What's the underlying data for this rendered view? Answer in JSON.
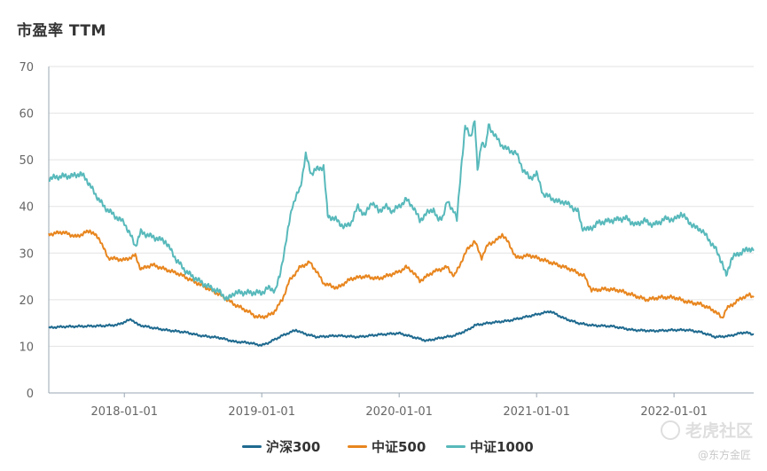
{
  "title": "市盈率 TTM",
  "watermark": {
    "text": "老虎社区",
    "sub": "@东方金匠",
    "icon": "tiger-community-logo-icon"
  },
  "legend": [
    {
      "label": "沪深300",
      "color": "#1f6a8f"
    },
    {
      "label": "中证500",
      "color": "#e8861f"
    },
    {
      "label": "中证1000",
      "color": "#58b9bb"
    }
  ],
  "chart_data": {
    "type": "line",
    "title": "市盈率 TTM",
    "xlabel": "",
    "ylabel": "",
    "ylim": [
      0,
      70
    ],
    "yticks": [
      0,
      10,
      20,
      30,
      40,
      50,
      60,
      70
    ],
    "xlim": [
      2017.45,
      2022.58
    ],
    "xticks": [
      {
        "value": 2018.0,
        "label": "2018-01-01"
      },
      {
        "value": 2019.0,
        "label": "2019-01-01"
      },
      {
        "value": 2020.0,
        "label": "2020-01-01"
      },
      {
        "value": 2021.0,
        "label": "2021-01-01"
      },
      {
        "value": 2022.0,
        "label": "2022-01-01"
      }
    ],
    "grid": "horizontal",
    "series": [
      {
        "name": "沪深300",
        "color": "#1f6a8f",
        "points": [
          [
            2017.45,
            14.0
          ],
          [
            2017.55,
            14.2
          ],
          [
            2017.7,
            14.3
          ],
          [
            2017.85,
            14.4
          ],
          [
            2017.95,
            14.6
          ],
          [
            2018.05,
            15.8
          ],
          [
            2018.1,
            14.6
          ],
          [
            2018.2,
            14.0
          ],
          [
            2018.3,
            13.5
          ],
          [
            2018.45,
            13.0
          ],
          [
            2018.55,
            12.3
          ],
          [
            2018.7,
            11.8
          ],
          [
            2018.8,
            11.0
          ],
          [
            2018.9,
            10.8
          ],
          [
            2019.0,
            10.2
          ],
          [
            2019.05,
            10.8
          ],
          [
            2019.15,
            12.3
          ],
          [
            2019.25,
            13.5
          ],
          [
            2019.3,
            12.8
          ],
          [
            2019.4,
            12.0
          ],
          [
            2019.55,
            12.3
          ],
          [
            2019.7,
            12.0
          ],
          [
            2019.85,
            12.5
          ],
          [
            2020.0,
            12.8
          ],
          [
            2020.1,
            12.0
          ],
          [
            2020.2,
            11.2
          ],
          [
            2020.3,
            11.8
          ],
          [
            2020.4,
            12.3
          ],
          [
            2020.5,
            13.5
          ],
          [
            2020.55,
            14.5
          ],
          [
            2020.65,
            15.0
          ],
          [
            2020.8,
            15.5
          ],
          [
            2020.95,
            16.5
          ],
          [
            2021.1,
            17.5
          ],
          [
            2021.2,
            16.0
          ],
          [
            2021.3,
            15.0
          ],
          [
            2021.4,
            14.5
          ],
          [
            2021.55,
            14.3
          ],
          [
            2021.7,
            13.5
          ],
          [
            2021.85,
            13.3
          ],
          [
            2022.0,
            13.5
          ],
          [
            2022.1,
            13.5
          ],
          [
            2022.2,
            13.0
          ],
          [
            2022.3,
            12.0
          ],
          [
            2022.4,
            12.2
          ],
          [
            2022.48,
            12.8
          ],
          [
            2022.52,
            13.0
          ],
          [
            2022.58,
            12.5
          ]
        ]
      },
      {
        "name": "中证500",
        "color": "#e8861f",
        "points": [
          [
            2017.45,
            34.0
          ],
          [
            2017.55,
            34.5
          ],
          [
            2017.65,
            33.5
          ],
          [
            2017.75,
            34.8
          ],
          [
            2017.82,
            33.0
          ],
          [
            2017.88,
            29.0
          ],
          [
            2018.0,
            28.5
          ],
          [
            2018.08,
            29.5
          ],
          [
            2018.12,
            26.5
          ],
          [
            2018.2,
            27.5
          ],
          [
            2018.3,
            26.5
          ],
          [
            2018.4,
            25.5
          ],
          [
            2018.5,
            24.0
          ],
          [
            2018.6,
            22.5
          ],
          [
            2018.7,
            21.0
          ],
          [
            2018.8,
            19.0
          ],
          [
            2018.9,
            17.5
          ],
          [
            2018.95,
            16.5
          ],
          [
            2019.0,
            16.2
          ],
          [
            2019.08,
            17.0
          ],
          [
            2019.15,
            20.0
          ],
          [
            2019.2,
            24.0
          ],
          [
            2019.28,
            27.0
          ],
          [
            2019.35,
            28.0
          ],
          [
            2019.4,
            26.0
          ],
          [
            2019.45,
            23.5
          ],
          [
            2019.55,
            22.5
          ],
          [
            2019.65,
            24.5
          ],
          [
            2019.75,
            25.0
          ],
          [
            2019.85,
            24.5
          ],
          [
            2019.95,
            25.5
          ],
          [
            2020.0,
            26.0
          ],
          [
            2020.05,
            27.0
          ],
          [
            2020.1,
            26.0
          ],
          [
            2020.15,
            24.0
          ],
          [
            2020.25,
            26.0
          ],
          [
            2020.35,
            27.0
          ],
          [
            2020.4,
            25.0
          ],
          [
            2020.45,
            28.0
          ],
          [
            2020.5,
            31.0
          ],
          [
            2020.55,
            32.5
          ],
          [
            2020.6,
            29.0
          ],
          [
            2020.65,
            32.0
          ],
          [
            2020.7,
            32.5
          ],
          [
            2020.75,
            34.0
          ],
          [
            2020.8,
            32.0
          ],
          [
            2020.85,
            29.0
          ],
          [
            2020.95,
            29.5
          ],
          [
            2021.05,
            28.5
          ],
          [
            2021.15,
            27.5
          ],
          [
            2021.25,
            26.5
          ],
          [
            2021.35,
            25.0
          ],
          [
            2021.4,
            22.0
          ],
          [
            2021.5,
            22.3
          ],
          [
            2021.6,
            22.0
          ],
          [
            2021.7,
            21.0
          ],
          [
            2021.8,
            20.0
          ],
          [
            2021.9,
            20.5
          ],
          [
            2022.0,
            20.5
          ],
          [
            2022.1,
            19.5
          ],
          [
            2022.2,
            19.0
          ],
          [
            2022.3,
            17.5
          ],
          [
            2022.35,
            16.0
          ],
          [
            2022.38,
            18.0
          ],
          [
            2022.45,
            19.5
          ],
          [
            2022.5,
            20.5
          ],
          [
            2022.55,
            21.0
          ],
          [
            2022.58,
            20.5
          ]
        ]
      },
      {
        "name": "中证1000",
        "color": "#58b9bb",
        "points": [
          [
            2017.45,
            46.0
          ],
          [
            2017.55,
            46.5
          ],
          [
            2017.62,
            46.5
          ],
          [
            2017.68,
            47.0
          ],
          [
            2017.72,
            46.0
          ],
          [
            2017.78,
            43.0
          ],
          [
            2017.85,
            40.0
          ],
          [
            2017.95,
            37.5
          ],
          [
            2018.0,
            36.5
          ],
          [
            2018.05,
            33.5
          ],
          [
            2018.08,
            31.5
          ],
          [
            2018.12,
            34.5
          ],
          [
            2018.2,
            33.5
          ],
          [
            2018.3,
            32.5
          ],
          [
            2018.38,
            28.5
          ],
          [
            2018.45,
            26.0
          ],
          [
            2018.52,
            24.5
          ],
          [
            2018.6,
            23.0
          ],
          [
            2018.7,
            21.5
          ],
          [
            2018.75,
            20.0
          ],
          [
            2018.8,
            21.5
          ],
          [
            2018.9,
            21.5
          ],
          [
            2019.0,
            21.5
          ],
          [
            2019.05,
            22.5
          ],
          [
            2019.1,
            22.0
          ],
          [
            2019.13,
            25.0
          ],
          [
            2019.18,
            33.0
          ],
          [
            2019.22,
            40.0
          ],
          [
            2019.28,
            44.0
          ],
          [
            2019.32,
            51.0
          ],
          [
            2019.36,
            47.0
          ],
          [
            2019.4,
            48.0
          ],
          [
            2019.45,
            48.5
          ],
          [
            2019.48,
            38.0
          ],
          [
            2019.55,
            37.0
          ],
          [
            2019.6,
            35.5
          ],
          [
            2019.65,
            36.5
          ],
          [
            2019.7,
            40.0
          ],
          [
            2019.75,
            38.0
          ],
          [
            2019.8,
            41.0
          ],
          [
            2019.85,
            39.0
          ],
          [
            2019.9,
            40.0
          ],
          [
            2019.95,
            39.0
          ],
          [
            2020.0,
            40.0
          ],
          [
            2020.05,
            41.5
          ],
          [
            2020.1,
            40.0
          ],
          [
            2020.15,
            37.0
          ],
          [
            2020.2,
            38.5
          ],
          [
            2020.25,
            39.5
          ],
          [
            2020.28,
            37.0
          ],
          [
            2020.32,
            38.0
          ],
          [
            2020.35,
            41.0
          ],
          [
            2020.4,
            39.0
          ],
          [
            2020.42,
            37.0
          ],
          [
            2020.45,
            48.0
          ],
          [
            2020.48,
            57.0
          ],
          [
            2020.52,
            55.0
          ],
          [
            2020.55,
            58.5
          ],
          [
            2020.57,
            47.5
          ],
          [
            2020.6,
            54.0
          ],
          [
            2020.63,
            52.5
          ],
          [
            2020.65,
            57.5
          ],
          [
            2020.7,
            55.0
          ],
          [
            2020.75,
            53.0
          ],
          [
            2020.8,
            52.0
          ],
          [
            2020.85,
            51.5
          ],
          [
            2020.9,
            48.0
          ],
          [
            2020.95,
            46.0
          ],
          [
            2021.0,
            47.0
          ],
          [
            2021.05,
            42.5
          ],
          [
            2021.1,
            42.0
          ],
          [
            2021.15,
            41.0
          ],
          [
            2021.2,
            41.0
          ],
          [
            2021.25,
            40.0
          ],
          [
            2021.3,
            39.0
          ],
          [
            2021.33,
            35.5
          ],
          [
            2021.38,
            35.0
          ],
          [
            2021.45,
            36.5
          ],
          [
            2021.55,
            37.0
          ],
          [
            2021.65,
            37.5
          ],
          [
            2021.72,
            36.0
          ],
          [
            2021.78,
            37.0
          ],
          [
            2021.85,
            36.0
          ],
          [
            2021.95,
            37.5
          ],
          [
            2022.0,
            37.0
          ],
          [
            2022.05,
            38.5
          ],
          [
            2022.1,
            37.0
          ],
          [
            2022.15,
            35.5
          ],
          [
            2022.2,
            35.0
          ],
          [
            2022.25,
            33.0
          ],
          [
            2022.3,
            31.0
          ],
          [
            2022.35,
            28.0
          ],
          [
            2022.38,
            25.0
          ],
          [
            2022.42,
            29.0
          ],
          [
            2022.48,
            30.0
          ],
          [
            2022.55,
            31.0
          ],
          [
            2022.58,
            30.5
          ]
        ]
      }
    ]
  }
}
